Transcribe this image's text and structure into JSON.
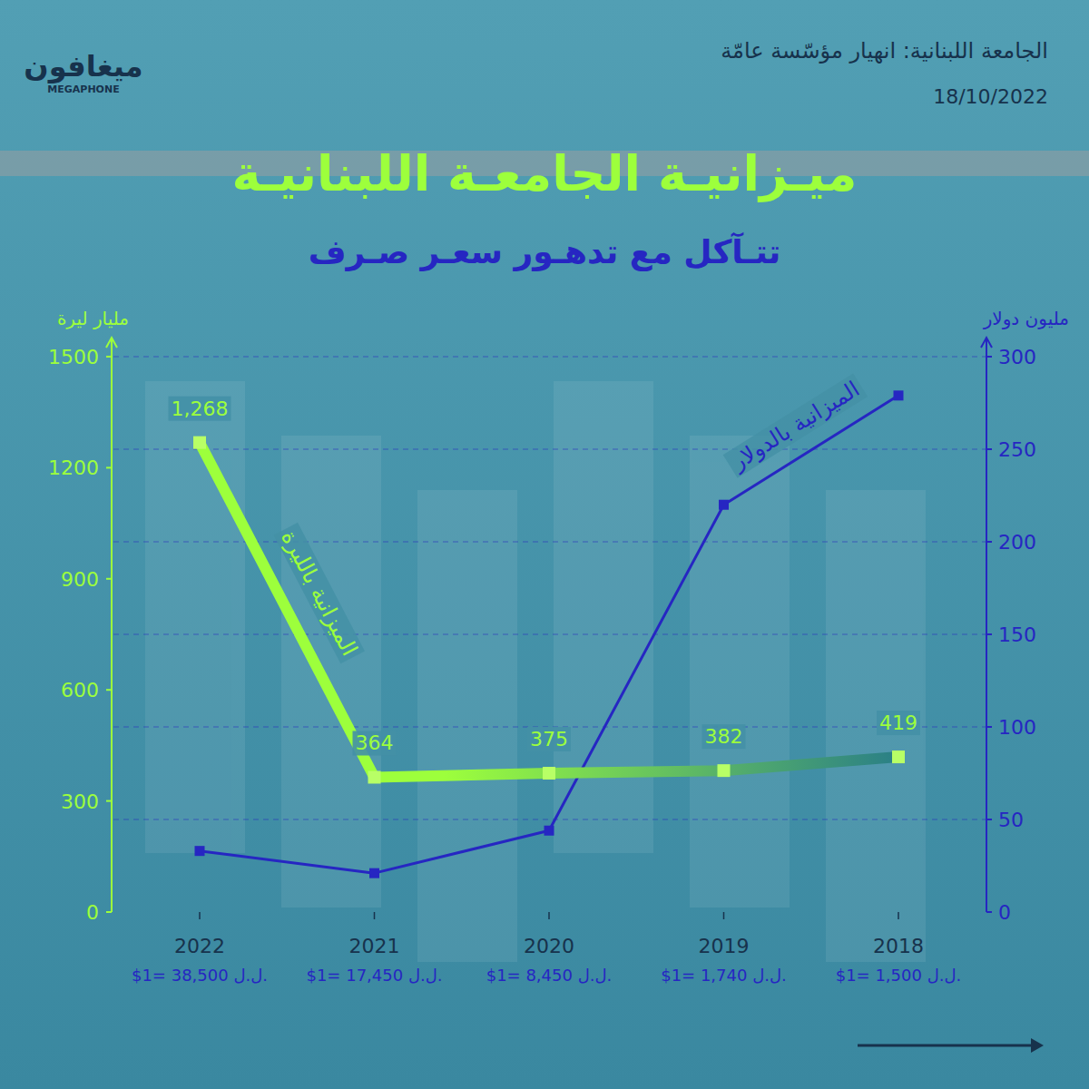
{
  "header": {
    "logo": "ميغافون",
    "logo_latin": "MEGAPHONE",
    "kicker": "الجامعة اللبنانية: انهيار مؤسّسة عامّة",
    "date": "18/10/2022"
  },
  "chart_data": {
    "type": "line",
    "title": "ميـزانيـة الجامعـة اللبنانيـة",
    "subtitle": "تتـآكل مع تدهـور سعـر صـرف",
    "categories": [
      "2022",
      "2021",
      "2020",
      "2019",
      "2018"
    ],
    "x_sublabels": [
      "$1= 38,500 ل.ل.",
      "$1= 17,450 ل.ل.",
      "$1= 8,450 ل.ل.",
      "$1= 1,740 ل.ل.",
      "$1= 1,500 ل.ل."
    ],
    "y_label": "مليار ليرة",
    "y2_label": "مليون دولار",
    "ylim": [
      0,
      1500
    ],
    "yticks": [
      0,
      300,
      600,
      900,
      1200,
      1500
    ],
    "y2lim": [
      0,
      300
    ],
    "y2ticks": [
      0,
      50,
      100,
      150,
      200,
      250,
      300
    ],
    "grid": true,
    "series": [
      {
        "name": "الميزانية بالليرة",
        "color": "#9dff3c",
        "marker": "square",
        "data_labels": true,
        "values": [
          1268,
          364,
          375,
          382,
          419
        ],
        "value_labels": [
          "1,268",
          "364",
          "375",
          "382",
          "419"
        ]
      },
      {
        "name": "الميزانية بالدولار",
        "color": "#2626c2",
        "marker": "square",
        "axis": "y2",
        "values": [
          33,
          21,
          44,
          220,
          279
        ]
      }
    ]
  }
}
